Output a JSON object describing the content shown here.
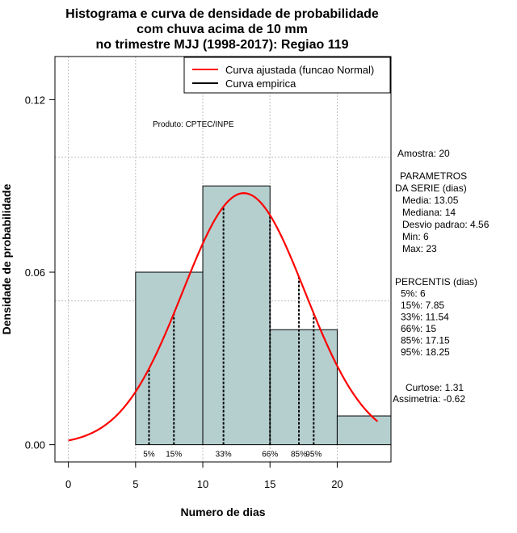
{
  "chart_data": {
    "type": "histogram",
    "title_lines": [
      "Histograma e curva de densidade de probabilidade",
      "com chuva acima de 10 mm",
      "no trimestre MJJ (1998-2017): Regiao 119"
    ],
    "xlabel": "Numero de dias",
    "ylabel": "Densidade de probabilidade",
    "xlim": [
      -1,
      24
    ],
    "ylim": [
      -0.006,
      0.135
    ],
    "x_ticks": [
      0,
      5,
      10,
      15,
      20
    ],
    "y_ticks": [
      0.0,
      0.06,
      0.12
    ],
    "y_tick_labels": [
      "0.00",
      "0.06",
      "0.12"
    ],
    "grid": true,
    "grid_x": [
      0,
      5,
      10,
      15,
      20
    ],
    "grid_y": [
      0.05,
      0.1
    ],
    "bins": [
      {
        "x0": 5,
        "x1": 10,
        "density": 0.06
      },
      {
        "x0": 10,
        "x1": 15,
        "density": 0.09
      },
      {
        "x0": 15,
        "x1": 20,
        "density": 0.04
      },
      {
        "x0": 20,
        "x1": 25,
        "density": 0.01
      }
    ],
    "normal_fit": {
      "mean": 13.05,
      "sd": 4.56,
      "x_from": 0,
      "x_to": 23
    },
    "percentile_markers": [
      {
        "label": "5%",
        "x": 6
      },
      {
        "label": "15%",
        "x": 7.85
      },
      {
        "label": "33%",
        "x": 11.54
      },
      {
        "label": "66%",
        "x": 15
      },
      {
        "label": "85%",
        "x": 17.15
      },
      {
        "label": "95%",
        "x": 18.25
      }
    ],
    "legend": {
      "position": "top-right",
      "entries": [
        {
          "label": "Curva ajustada (funcao Normal)",
          "color": "#ff0000"
        },
        {
          "label": "Curva empirica",
          "color": "#000000"
        }
      ]
    },
    "annotation": "Produto: CPTEC/INPE",
    "colors": {
      "bar_fill": "#b5cfcf",
      "curve": "#ff0000",
      "grid": "#bdbdbd"
    }
  },
  "side_panel": {
    "amostra": "Amostra: 20",
    "parametros_lines": [
      "PARAMETROS",
      "DA SERIE (dias)",
      "Media: 13.05",
      "Mediana: 14",
      "Desvio padrao: 4.56",
      "Min: 6",
      "Max: 23"
    ],
    "percentis_lines": [
      "PERCENTIS (dias)",
      "5%: 6",
      "15%: 7.85",
      "33%: 11.54",
      "66%: 15",
      "85%: 17.15",
      "95%: 18.25"
    ],
    "curtose": "Curtose: 1.31",
    "assimetria": "Assimetria: -0.62"
  }
}
